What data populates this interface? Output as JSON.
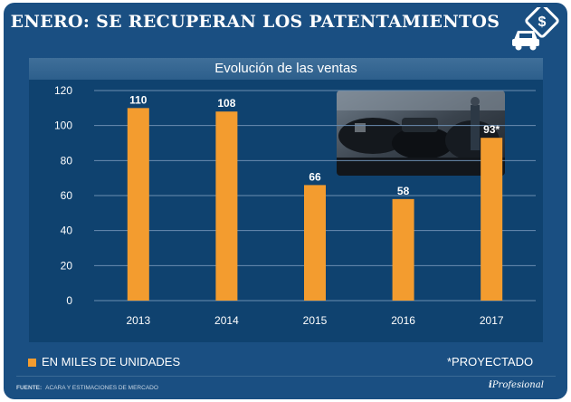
{
  "header": {
    "headline": "ENERO: SE RECUPERAN LOS PATENTAMIENTOS",
    "logo_icon": "car-money-icon"
  },
  "chart_data": {
    "type": "bar",
    "title": "Evolución de las ventas",
    "categories": [
      "2013",
      "2014",
      "2015",
      "2016",
      "2017"
    ],
    "values": [
      110,
      108,
      66,
      58,
      93
    ],
    "data_labels": [
      "110",
      "108",
      "66",
      "58",
      "93*"
    ],
    "ylim": [
      0,
      120
    ],
    "yticks": [
      0,
      20,
      40,
      60,
      80,
      100,
      120
    ],
    "grid": true,
    "bar_color": "#f39c2f",
    "legend": "EN MILES DE UNIDADES",
    "note": "*PROYECTADO"
  },
  "footer": {
    "source_label": "FUENTE:",
    "source_text": "ACARA Y ESTIMACIONES DE MERCADO",
    "brand_prefix": "i",
    "brand_name": "Profesional"
  },
  "colors": {
    "background": "#1a4f82",
    "plot_background": "#0f426f",
    "bar": "#f39c2f",
    "text": "#ffffff"
  }
}
